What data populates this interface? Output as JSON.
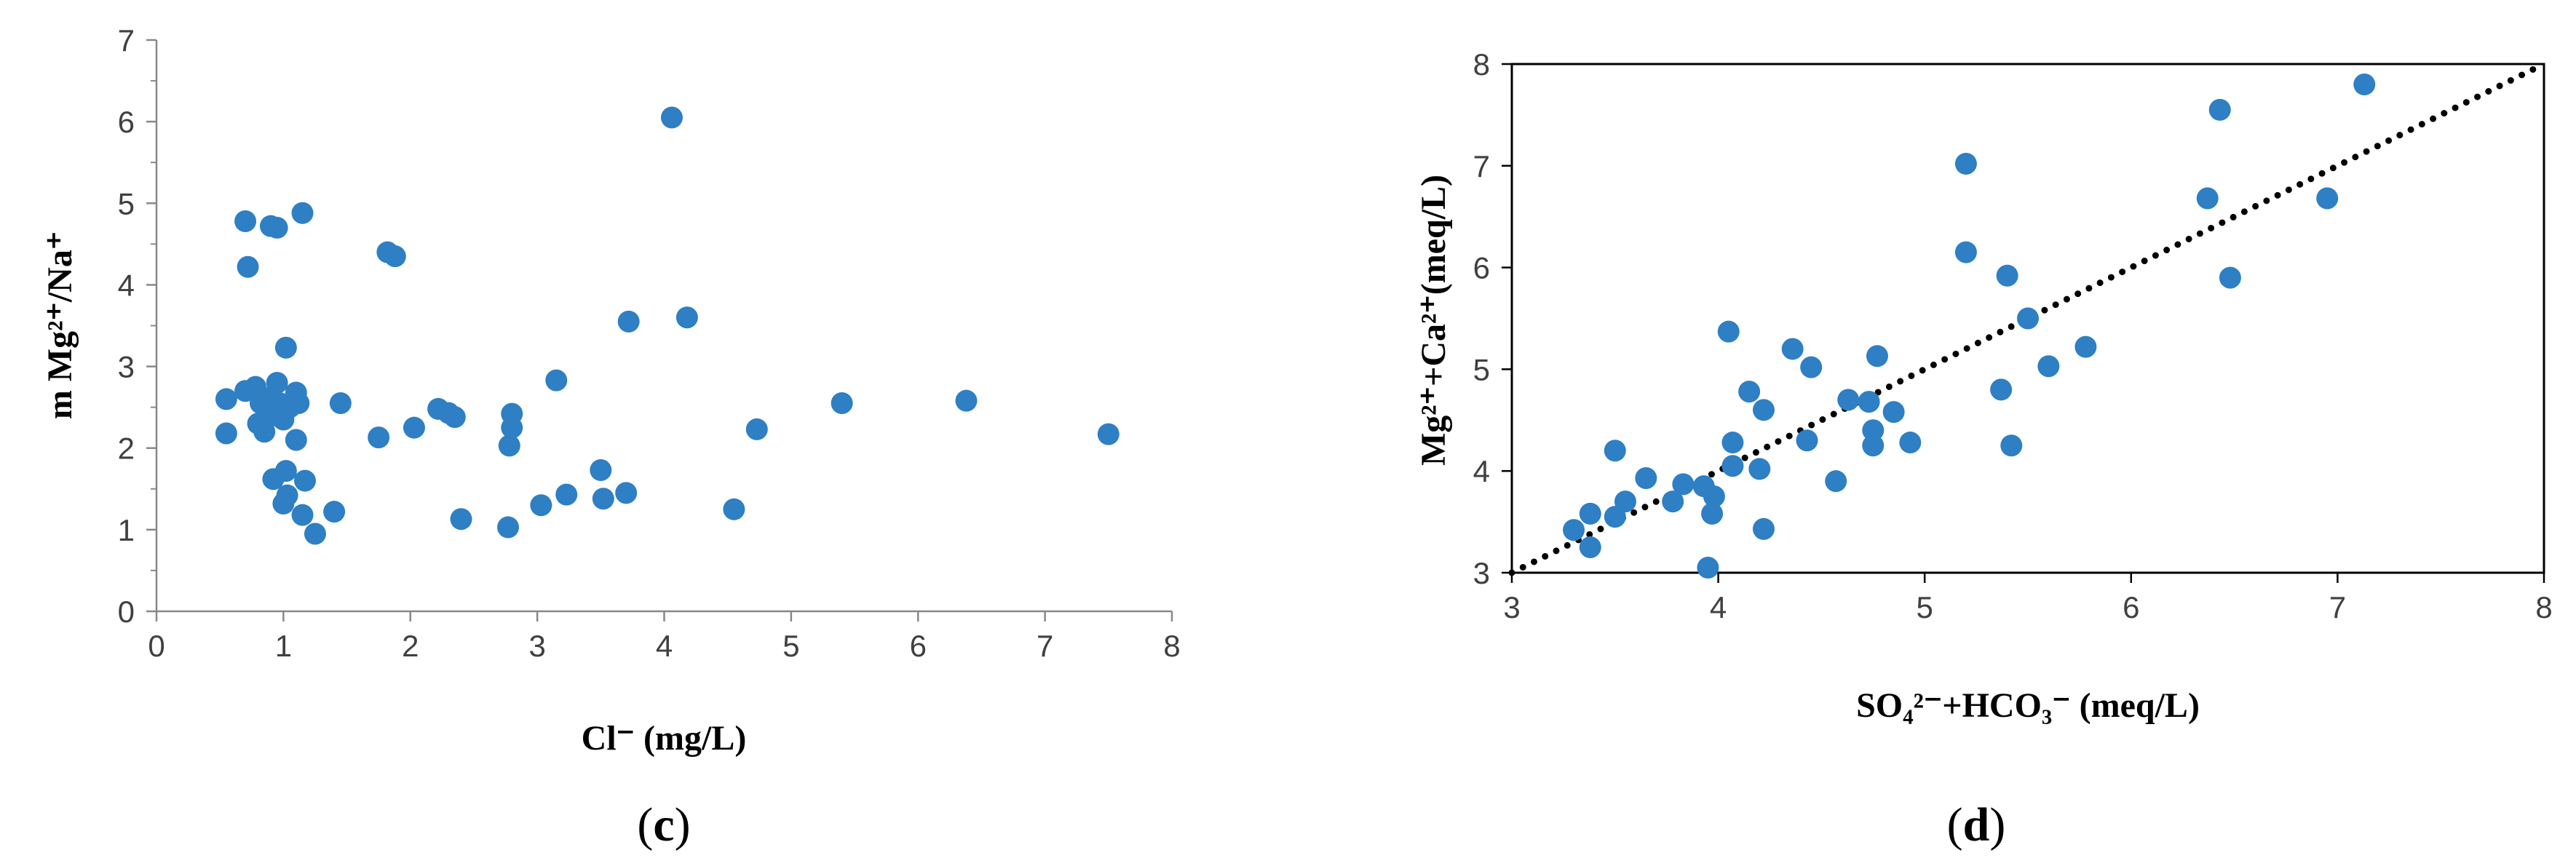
{
  "chart_data": [
    {
      "type": "scatter",
      "panel_label": "(c)",
      "panel_letter": "c",
      "title": "",
      "xlabel": "Cl⁻ (mg/L)",
      "ylabel": "m Mg²⁺/Na⁺",
      "xlim": [
        0,
        8
      ],
      "ylim": [
        0,
        7
      ],
      "xticks": [
        0,
        1,
        2,
        3,
        4,
        5,
        6,
        7,
        8
      ],
      "yticks": [
        0,
        1,
        2,
        3,
        4,
        5,
        6,
        7
      ],
      "grid": false,
      "legend": "none",
      "marker_color": "#2e7fc4",
      "points": [
        [
          0.55,
          2.6
        ],
        [
          0.55,
          2.18
        ],
        [
          0.7,
          2.7
        ],
        [
          0.7,
          4.78
        ],
        [
          0.72,
          4.22
        ],
        [
          0.78,
          2.75
        ],
        [
          0.8,
          2.3
        ],
        [
          0.82,
          2.55
        ],
        [
          0.85,
          2.2
        ],
        [
          0.87,
          2.45
        ],
        [
          0.9,
          2.62
        ],
        [
          0.9,
          4.72
        ],
        [
          0.92,
          1.62
        ],
        [
          0.93,
          2.4
        ],
        [
          0.95,
          2.8
        ],
        [
          0.95,
          4.7
        ],
        [
          0.97,
          2.55
        ],
        [
          1.0,
          1.32
        ],
        [
          1.0,
          2.35
        ],
        [
          1.02,
          1.72
        ],
        [
          1.02,
          3.23
        ],
        [
          1.03,
          1.42
        ],
        [
          1.05,
          2.5
        ],
        [
          1.1,
          2.1
        ],
        [
          1.1,
          2.68
        ],
        [
          1.12,
          2.55
        ],
        [
          1.15,
          4.88
        ],
        [
          1.15,
          1.18
        ],
        [
          1.17,
          1.6
        ],
        [
          1.25,
          0.95
        ],
        [
          1.4,
          1.22
        ],
        [
          1.45,
          2.55
        ],
        [
          1.75,
          2.13
        ],
        [
          1.82,
          4.4
        ],
        [
          1.88,
          4.35
        ],
        [
          2.03,
          2.25
        ],
        [
          2.22,
          2.48
        ],
        [
          2.3,
          2.43
        ],
        [
          2.35,
          2.38
        ],
        [
          2.4,
          1.13
        ],
        [
          2.77,
          1.03
        ],
        [
          2.78,
          2.03
        ],
        [
          2.8,
          2.25
        ],
        [
          2.8,
          2.42
        ],
        [
          3.03,
          1.3
        ],
        [
          3.15,
          2.83
        ],
        [
          3.23,
          1.43
        ],
        [
          3.5,
          1.73
        ],
        [
          3.52,
          1.38
        ],
        [
          3.7,
          1.45
        ],
        [
          3.72,
          3.55
        ],
        [
          4.06,
          6.05
        ],
        [
          4.18,
          3.6
        ],
        [
          4.55,
          1.25
        ],
        [
          4.73,
          2.23
        ],
        [
          5.4,
          2.55
        ],
        [
          6.38,
          2.58
        ],
        [
          7.5,
          2.17
        ]
      ]
    },
    {
      "type": "scatter",
      "panel_label": "(d)",
      "panel_letter": "d",
      "title": "",
      "xlabel": "SO₄²⁻+HCO₃⁻ (meq/L)",
      "ylabel": "Mg²⁺+Ca²⁺(meq/L)",
      "xlim": [
        3,
        8
      ],
      "ylim": [
        3,
        8
      ],
      "xticks": [
        3,
        4,
        5,
        6,
        7,
        8
      ],
      "yticks": [
        3,
        4,
        5,
        6,
        7,
        8
      ],
      "grid": false,
      "legend": "none",
      "marker_color": "#2e7fc4",
      "reference_line": {
        "from": [
          3,
          3
        ],
        "to": [
          8,
          8
        ],
        "style": "dotted",
        "color": "#000000"
      },
      "points": [
        [
          3.3,
          3.42
        ],
        [
          3.38,
          3.58
        ],
        [
          3.38,
          3.25
        ],
        [
          3.5,
          4.2
        ],
        [
          3.5,
          3.55
        ],
        [
          3.55,
          3.7
        ],
        [
          3.65,
          3.93
        ],
        [
          3.78,
          3.7
        ],
        [
          3.83,
          3.87
        ],
        [
          3.93,
          3.85
        ],
        [
          3.95,
          3.05
        ],
        [
          3.97,
          3.58
        ],
        [
          3.98,
          3.75
        ],
        [
          4.05,
          5.37
        ],
        [
          4.07,
          4.28
        ],
        [
          4.07,
          4.05
        ],
        [
          4.15,
          4.78
        ],
        [
          4.2,
          4.02
        ],
        [
          4.22,
          4.6
        ],
        [
          4.22,
          3.43
        ],
        [
          4.36,
          5.2
        ],
        [
          4.43,
          4.3
        ],
        [
          4.45,
          5.02
        ],
        [
          4.57,
          3.9
        ],
        [
          4.63,
          4.7
        ],
        [
          4.73,
          4.68
        ],
        [
          4.75,
          4.25
        ],
        [
          4.75,
          4.4
        ],
        [
          4.77,
          5.13
        ],
        [
          4.85,
          4.58
        ],
        [
          4.93,
          4.28
        ],
        [
          5.2,
          7.02
        ],
        [
          5.2,
          6.15
        ],
        [
          5.37,
          4.8
        ],
        [
          5.4,
          5.92
        ],
        [
          5.42,
          4.25
        ],
        [
          5.5,
          5.5
        ],
        [
          5.6,
          5.03
        ],
        [
          5.78,
          5.22
        ],
        [
          6.37,
          6.68
        ],
        [
          6.43,
          7.55
        ],
        [
          6.48,
          5.9
        ],
        [
          6.95,
          6.68
        ],
        [
          7.13,
          7.8
        ]
      ]
    }
  ]
}
